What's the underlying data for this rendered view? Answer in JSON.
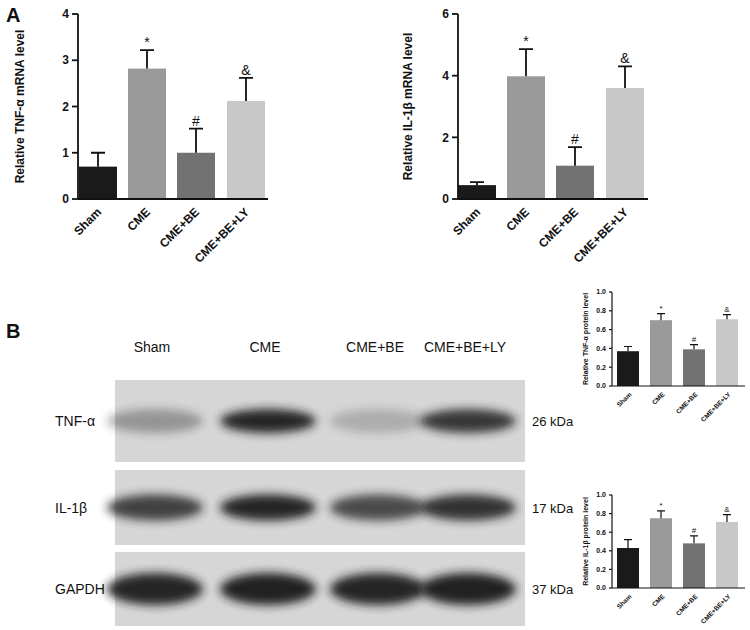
{
  "chart_data": [
    {
      "type": "bar",
      "y_label": "Relative TNF-α mRNA level",
      "categories": [
        "Sham",
        "CME",
        "CME+BE",
        "CME+BE+LY"
      ],
      "values": [
        0.7,
        2.82,
        1.0,
        2.12
      ],
      "errors": [
        0.3,
        0.4,
        0.52,
        0.5
      ],
      "annotations": [
        null,
        "*",
        "#",
        "&"
      ],
      "colors": [
        "#1a1a1a",
        "#9a9a9a",
        "#727272",
        "#c8c8c8"
      ],
      "ylim": [
        0,
        4
      ],
      "yticks": [
        0,
        1,
        2,
        3,
        4
      ]
    },
    {
      "type": "bar",
      "y_label": "Relative IL-1β mRNA level",
      "categories": [
        "Sham",
        "CME",
        "CME+BE",
        "CME+BE+LY"
      ],
      "values": [
        0.45,
        3.98,
        1.08,
        3.6
      ],
      "errors": [
        0.1,
        0.88,
        0.6,
        0.7
      ],
      "annotations": [
        null,
        "*",
        "#",
        "&"
      ],
      "colors": [
        "#1a1a1a",
        "#9a9a9a",
        "#727272",
        "#c8c8c8"
      ],
      "ylim": [
        0,
        6
      ],
      "yticks": [
        0,
        2,
        4,
        6
      ]
    },
    {
      "type": "bar",
      "y_label": "Relative TNF-α protein level",
      "categories": [
        "Sham",
        "CME",
        "CME+BE",
        "CME+BE+LY"
      ],
      "values": [
        0.37,
        0.7,
        0.39,
        0.71
      ],
      "errors": [
        0.05,
        0.07,
        0.05,
        0.05
      ],
      "annotations": [
        null,
        "*",
        "#",
        "&"
      ],
      "colors": [
        "#1a1a1a",
        "#9a9a9a",
        "#727272",
        "#c8c8c8"
      ],
      "ylim": [
        0,
        1
      ],
      "yticks": [
        {
          "value": 0,
          "label": "0.0"
        },
        0.2,
        0.4,
        0.6,
        0.8,
        {
          "value": 1,
          "label": "1.0"
        }
      ]
    },
    {
      "type": "bar",
      "y_label": "Relative IL-1β protein level",
      "categories": [
        "Sham",
        "CME",
        "CME+BE",
        "CME+BE+LY"
      ],
      "values": [
        0.43,
        0.75,
        0.48,
        0.71
      ],
      "errors": [
        0.09,
        0.08,
        0.08,
        0.08
      ],
      "annotations": [
        null,
        "*",
        "#",
        "&"
      ],
      "colors": [
        "#1a1a1a",
        "#9a9a9a",
        "#727272",
        "#c8c8c8"
      ],
      "ylim": [
        0,
        1
      ],
      "yticks": [
        {
          "value": 0,
          "label": "0.0"
        },
        0.2,
        0.4,
        0.6,
        0.8,
        {
          "value": 1,
          "label": "1.0"
        }
      ]
    }
  ],
  "panel_labels": [
    "A",
    "B"
  ],
  "blot": {
    "lanes": [
      "Sham",
      "CME",
      "CME+BE",
      "CME+BE+LY"
    ],
    "rows": [
      {
        "label": "TNF-α",
        "size": "26 kDa"
      },
      {
        "label": "IL-1β",
        "size": "17 kDa"
      },
      {
        "label": "GAPDH",
        "size": "37 kDa"
      }
    ]
  }
}
